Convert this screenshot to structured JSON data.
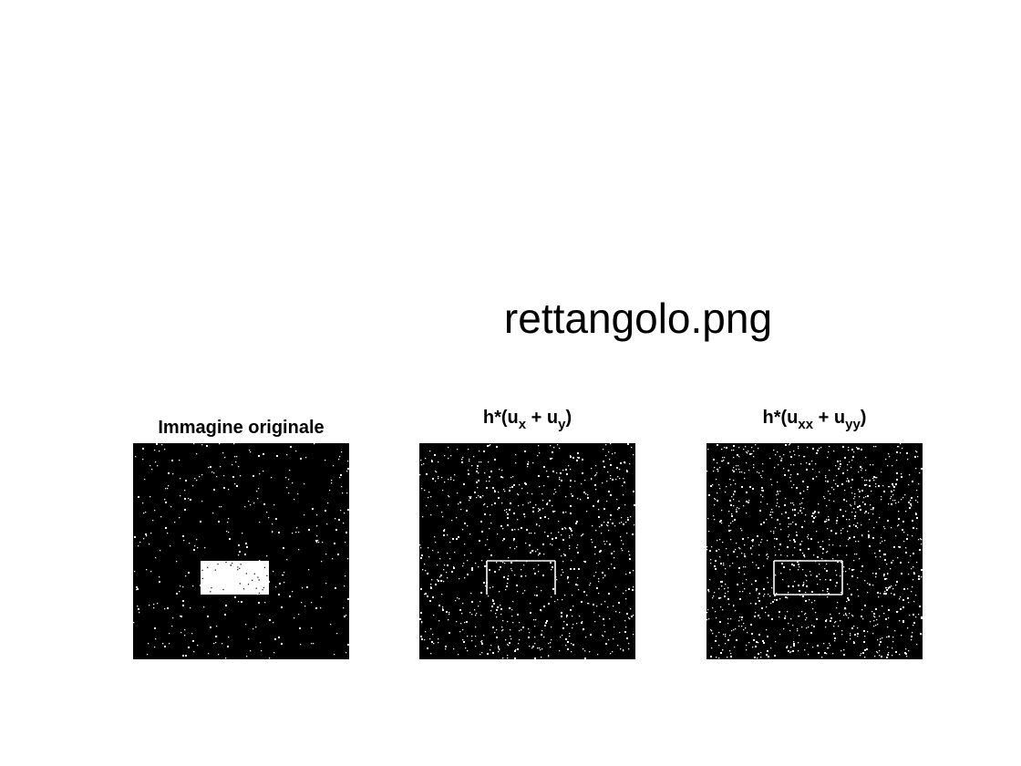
{
  "figure": {
    "title": "rettangolo.png"
  },
  "panels": [
    {
      "id": "original",
      "title": "Immagine originale",
      "noise_density": 0.025,
      "content": "filled-rectangle"
    },
    {
      "id": "first-derivative",
      "title_main": "h*(u",
      "title_sub1": "x",
      "title_mid": " + u",
      "title_sub2": "y",
      "title_end": ")",
      "noise_density": 0.06,
      "content": "open-rectangle-outline"
    },
    {
      "id": "second-derivative",
      "title_main": "h*(u",
      "title_sub1": "xx",
      "title_mid": " + u",
      "title_sub2": "yy",
      "title_end": ")",
      "noise_density": 0.08,
      "content": "closed-rectangle-outline"
    }
  ],
  "colors": {
    "background": "#000000",
    "foreground": "#ffffff"
  }
}
